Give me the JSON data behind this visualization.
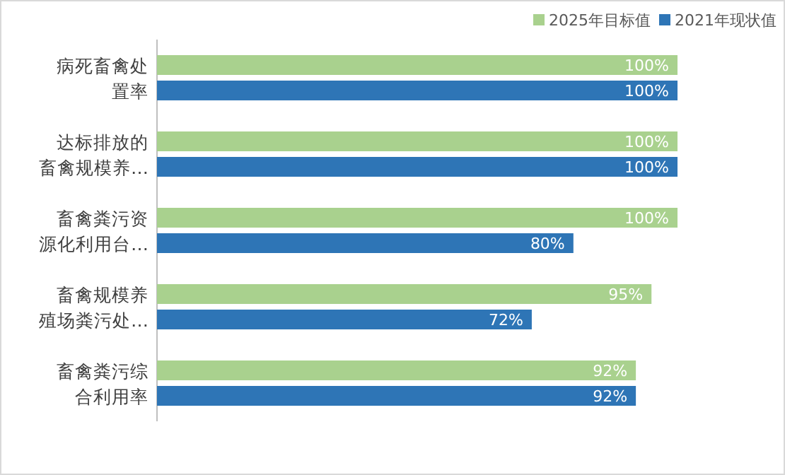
{
  "chart_data": {
    "type": "bar",
    "orientation": "horizontal",
    "categories": [
      "病死畜禽处置率",
      "达标排放的畜禽规模养…",
      "畜禽粪污资源化利用台…",
      "畜禽规模养殖场粪污处…",
      "畜禽粪污综合利用率"
    ],
    "series": [
      {
        "name": "2025年目标值",
        "color": "#a9d18e",
        "values": [
          100,
          100,
          100,
          95,
          92
        ],
        "value_labels": [
          "100%",
          "100%",
          "100%",
          "95%",
          "92%"
        ]
      },
      {
        "name": "2021年现状值",
        "color": "#2e75b6",
        "values": [
          100,
          100,
          80,
          72,
          92
        ],
        "value_labels": [
          "100%",
          "100%",
          "80%",
          "72%",
          "92%"
        ]
      }
    ],
    "tick_labels": "y",
    "legend": "top right"
  }
}
